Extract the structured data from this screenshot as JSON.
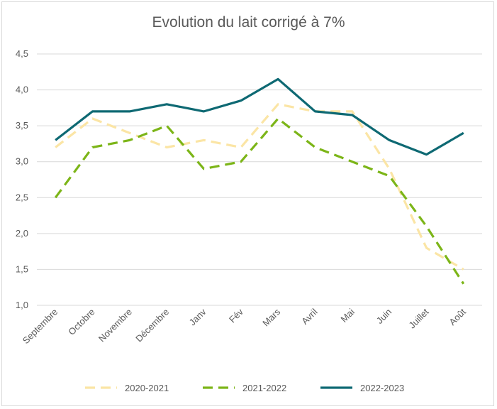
{
  "chart_data": {
    "type": "line",
    "title": "Evolution du lait corrigé à 7%",
    "xlabel": "",
    "ylabel": "",
    "categories": [
      "Septembre",
      "Octobre",
      "Novembre",
      "Décembre",
      "Janv",
      "Fév",
      "Mars",
      "Avril",
      "Mai",
      "Juin",
      "Juillet",
      "Août"
    ],
    "ylim": [
      1.0,
      4.5
    ],
    "yticks": [
      "1,0",
      "1,5",
      "2,0",
      "2,5",
      "3,0",
      "3,5",
      "4,0",
      "4,5"
    ],
    "grid": true,
    "legend_position": "bottom",
    "series": [
      {
        "name": "2020-2021",
        "color": "#fbe5a5",
        "style": "dashed",
        "values": [
          3.2,
          3.6,
          3.4,
          3.2,
          3.3,
          3.2,
          3.8,
          3.7,
          3.7,
          2.9,
          1.8,
          1.5
        ]
      },
      {
        "name": "2021-2022",
        "color": "#7cb518",
        "style": "dashed",
        "values": [
          2.5,
          3.2,
          3.3,
          3.5,
          2.9,
          3.0,
          3.6,
          3.2,
          3.0,
          2.8,
          2.1,
          1.3
        ]
      },
      {
        "name": "2022-2023",
        "color": "#0e6973",
        "style": "solid",
        "values": [
          3.3,
          3.7,
          3.7,
          3.8,
          3.7,
          3.85,
          4.15,
          3.7,
          3.65,
          3.3,
          3.1,
          3.4
        ]
      }
    ]
  }
}
